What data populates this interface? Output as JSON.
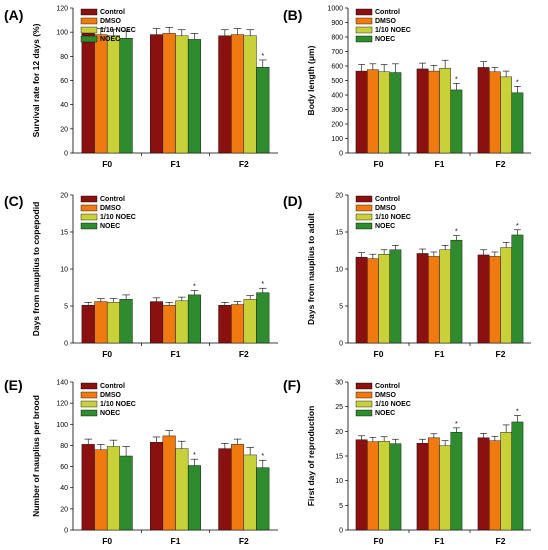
{
  "colors": {
    "Control": "#8B1010",
    "DMSO": "#F07A10",
    "1/10 NOEC": "#C8D13A",
    "NOEC": "#2E8B2E"
  },
  "chart_data": [
    {
      "type": "bar",
      "panel": "(A)",
      "ylabel": "Survival rate for 12 days (%)",
      "ylim": [
        0,
        120
      ],
      "yticks": [
        0,
        20,
        40,
        60,
        80,
        100,
        120
      ],
      "categories": [
        "F0",
        "F1",
        "F2"
      ],
      "legend": "top-left",
      "series": [
        {
          "name": "Control",
          "values": [
            99,
            98,
            97
          ],
          "errors": [
            5,
            5,
            5
          ],
          "sig": [
            false,
            false,
            false
          ]
        },
        {
          "name": "DMSO",
          "values": [
            98,
            99,
            98
          ],
          "errors": [
            5,
            5,
            5
          ],
          "sig": [
            false,
            false,
            false
          ]
        },
        {
          "name": "1/10 NOEC",
          "values": [
            97,
            97,
            97
          ],
          "errors": [
            5,
            5,
            5
          ],
          "sig": [
            false,
            false,
            false
          ]
        },
        {
          "name": "NOEC",
          "values": [
            95,
            94,
            71
          ],
          "errors": [
            6,
            5,
            6
          ],
          "sig": [
            false,
            false,
            true
          ]
        }
      ]
    },
    {
      "type": "bar",
      "panel": "(B)",
      "ylabel": "Body length (μm)",
      "ylim": [
        0,
        1000
      ],
      "yticks": [
        0,
        100,
        200,
        300,
        400,
        500,
        600,
        700,
        800,
        900,
        1000
      ],
      "categories": [
        "F0",
        "F1",
        "F2"
      ],
      "legend": "top-left",
      "series": [
        {
          "name": "Control",
          "values": [
            565,
            580,
            590
          ],
          "errors": [
            45,
            40,
            40
          ],
          "sig": [
            false,
            false,
            false
          ]
        },
        {
          "name": "DMSO",
          "values": [
            575,
            565,
            560
          ],
          "errors": [
            40,
            40,
            30
          ],
          "sig": [
            false,
            false,
            false
          ]
        },
        {
          "name": "1/10 NOEC",
          "values": [
            560,
            585,
            525
          ],
          "errors": [
            50,
            55,
            40
          ],
          "sig": [
            false,
            false,
            false
          ]
        },
        {
          "name": "NOEC",
          "values": [
            555,
            435,
            415
          ],
          "errors": [
            60,
            45,
            45
          ],
          "sig": [
            false,
            true,
            true
          ]
        }
      ]
    },
    {
      "type": "bar",
      "panel": "(C)",
      "ylabel": "Days from nauplius to copepodid",
      "ylim": [
        0,
        20
      ],
      "yticks": [
        0,
        5,
        10,
        15,
        20
      ],
      "categories": [
        "F0",
        "F1",
        "F2"
      ],
      "legend": "top-left",
      "series": [
        {
          "name": "Control",
          "values": [
            5.1,
            5.6,
            5.1
          ],
          "errors": [
            0.4,
            0.5,
            0.4
          ],
          "sig": [
            false,
            false,
            false
          ]
        },
        {
          "name": "DMSO",
          "values": [
            5.6,
            5.1,
            5.2
          ],
          "errors": [
            0.4,
            0.4,
            0.4
          ],
          "sig": [
            false,
            false,
            false
          ]
        },
        {
          "name": "1/10 NOEC",
          "values": [
            5.5,
            5.7,
            5.9
          ],
          "errors": [
            0.5,
            0.5,
            0.5
          ],
          "sig": [
            false,
            false,
            false
          ]
        },
        {
          "name": "NOEC",
          "values": [
            5.9,
            6.5,
            6.8
          ],
          "errors": [
            0.6,
            0.6,
            0.6
          ],
          "sig": [
            false,
            true,
            true
          ]
        }
      ]
    },
    {
      "type": "bar",
      "panel": "(D)",
      "ylabel": "Days from nauplius to adult",
      "ylim": [
        0,
        20
      ],
      "yticks": [
        0,
        5,
        10,
        15,
        20
      ],
      "categories": [
        "F0",
        "F1",
        "F2"
      ],
      "legend": "top-left",
      "series": [
        {
          "name": "Control",
          "values": [
            11.6,
            12.1,
            11.9
          ],
          "errors": [
            0.6,
            0.6,
            0.7
          ],
          "sig": [
            false,
            false,
            false
          ]
        },
        {
          "name": "DMSO",
          "values": [
            11.4,
            11.7,
            11.7
          ],
          "errors": [
            0.6,
            0.6,
            0.6
          ],
          "sig": [
            false,
            false,
            false
          ]
        },
        {
          "name": "1/10 NOEC",
          "values": [
            12.0,
            12.6,
            12.9
          ],
          "errors": [
            0.6,
            0.6,
            0.7
          ],
          "sig": [
            false,
            false,
            false
          ]
        },
        {
          "name": "NOEC",
          "values": [
            12.6,
            13.9,
            14.6
          ],
          "errors": [
            0.6,
            0.6,
            0.7
          ],
          "sig": [
            false,
            true,
            true
          ]
        }
      ]
    },
    {
      "type": "bar",
      "panel": "(E)",
      "ylabel": "Number of nauplius per brood",
      "ylim": [
        0,
        140
      ],
      "yticks": [
        0,
        20,
        40,
        60,
        80,
        100,
        120,
        140
      ],
      "categories": [
        "F0",
        "F1",
        "F2"
      ],
      "legend": "top-left",
      "series": [
        {
          "name": "Control",
          "values": [
            81,
            83,
            77
          ],
          "errors": [
            5,
            5,
            5
          ],
          "sig": [
            false,
            false,
            false
          ]
        },
        {
          "name": "DMSO",
          "values": [
            76,
            89,
            81
          ],
          "errors": [
            5,
            5,
            5
          ],
          "sig": [
            false,
            false,
            false
          ]
        },
        {
          "name": "1/10 NOEC",
          "values": [
            79,
            77,
            71
          ],
          "errors": [
            6,
            7,
            7
          ],
          "sig": [
            false,
            false,
            false
          ]
        },
        {
          "name": "NOEC",
          "values": [
            70,
            61,
            59
          ],
          "errors": [
            9,
            6,
            7
          ],
          "sig": [
            false,
            true,
            true
          ]
        }
      ]
    },
    {
      "type": "bar",
      "panel": "(F)",
      "ylabel": "First day of reproduction",
      "ylim": [
        0,
        30
      ],
      "yticks": [
        0,
        5,
        10,
        15,
        20,
        25,
        30
      ],
      "categories": [
        "F0",
        "F1",
        "F2"
      ],
      "legend": "top-left",
      "series": [
        {
          "name": "Control",
          "values": [
            18.3,
            17.6,
            18.7
          ],
          "errors": [
            0.8,
            0.8,
            0.9
          ],
          "sig": [
            false,
            false,
            false
          ]
        },
        {
          "name": "DMSO",
          "values": [
            17.9,
            18.7,
            18.1
          ],
          "errors": [
            0.9,
            0.8,
            0.9
          ],
          "sig": [
            false,
            false,
            false
          ]
        },
        {
          "name": "1/10 NOEC",
          "values": [
            18.0,
            17.1,
            19.8
          ],
          "errors": [
            0.9,
            1.0,
            1.5
          ],
          "sig": [
            false,
            false,
            false
          ]
        },
        {
          "name": "NOEC",
          "values": [
            17.5,
            19.8,
            21.9
          ],
          "errors": [
            0.9,
            0.9,
            1.3
          ],
          "sig": [
            false,
            true,
            true
          ]
        }
      ]
    }
  ]
}
